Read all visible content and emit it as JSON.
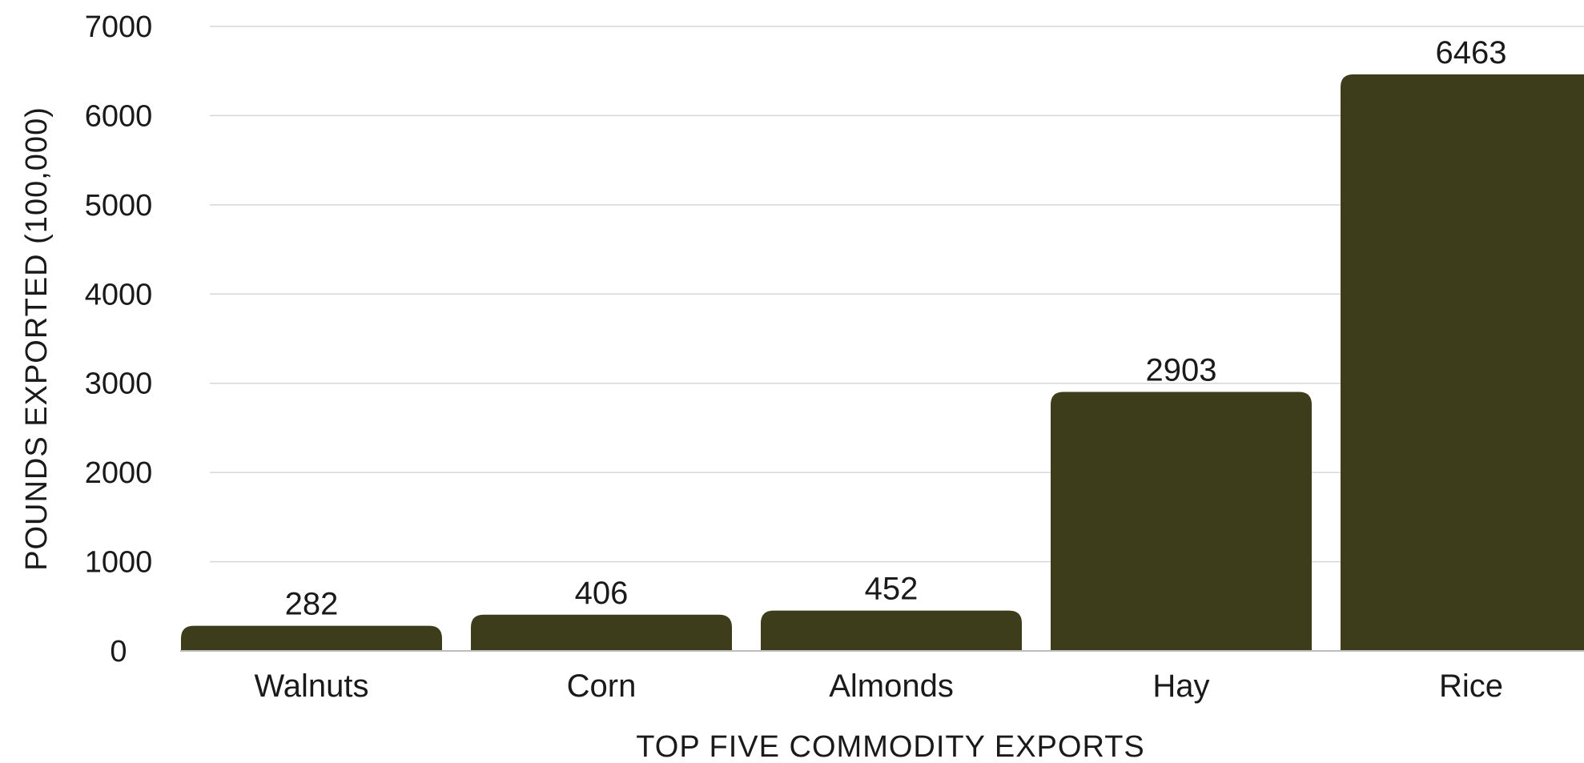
{
  "chart_data": {
    "type": "bar",
    "categories": [
      "Walnuts",
      "Corn",
      "Almonds",
      "Hay",
      "Rice"
    ],
    "values": [
      282,
      406,
      452,
      2903,
      6463
    ],
    "value_labels": [
      "282",
      "406",
      "452",
      "2903",
      "6463"
    ],
    "xlabel": "TOP FIVE COMMODITY EXPORTS",
    "ylabel": "POUNDS EXPORTED (100,000)",
    "ylim": [
      0,
      7000
    ],
    "yticks": [
      0,
      1000,
      2000,
      3000,
      4000,
      5000,
      6000,
      7000
    ],
    "ytick_labels": [
      "0",
      "1000",
      "2000",
      "3000",
      "4000",
      "5000",
      "6000",
      "7000"
    ],
    "grid": true,
    "legend": "none",
    "bar_color": "#3d3c1b"
  }
}
